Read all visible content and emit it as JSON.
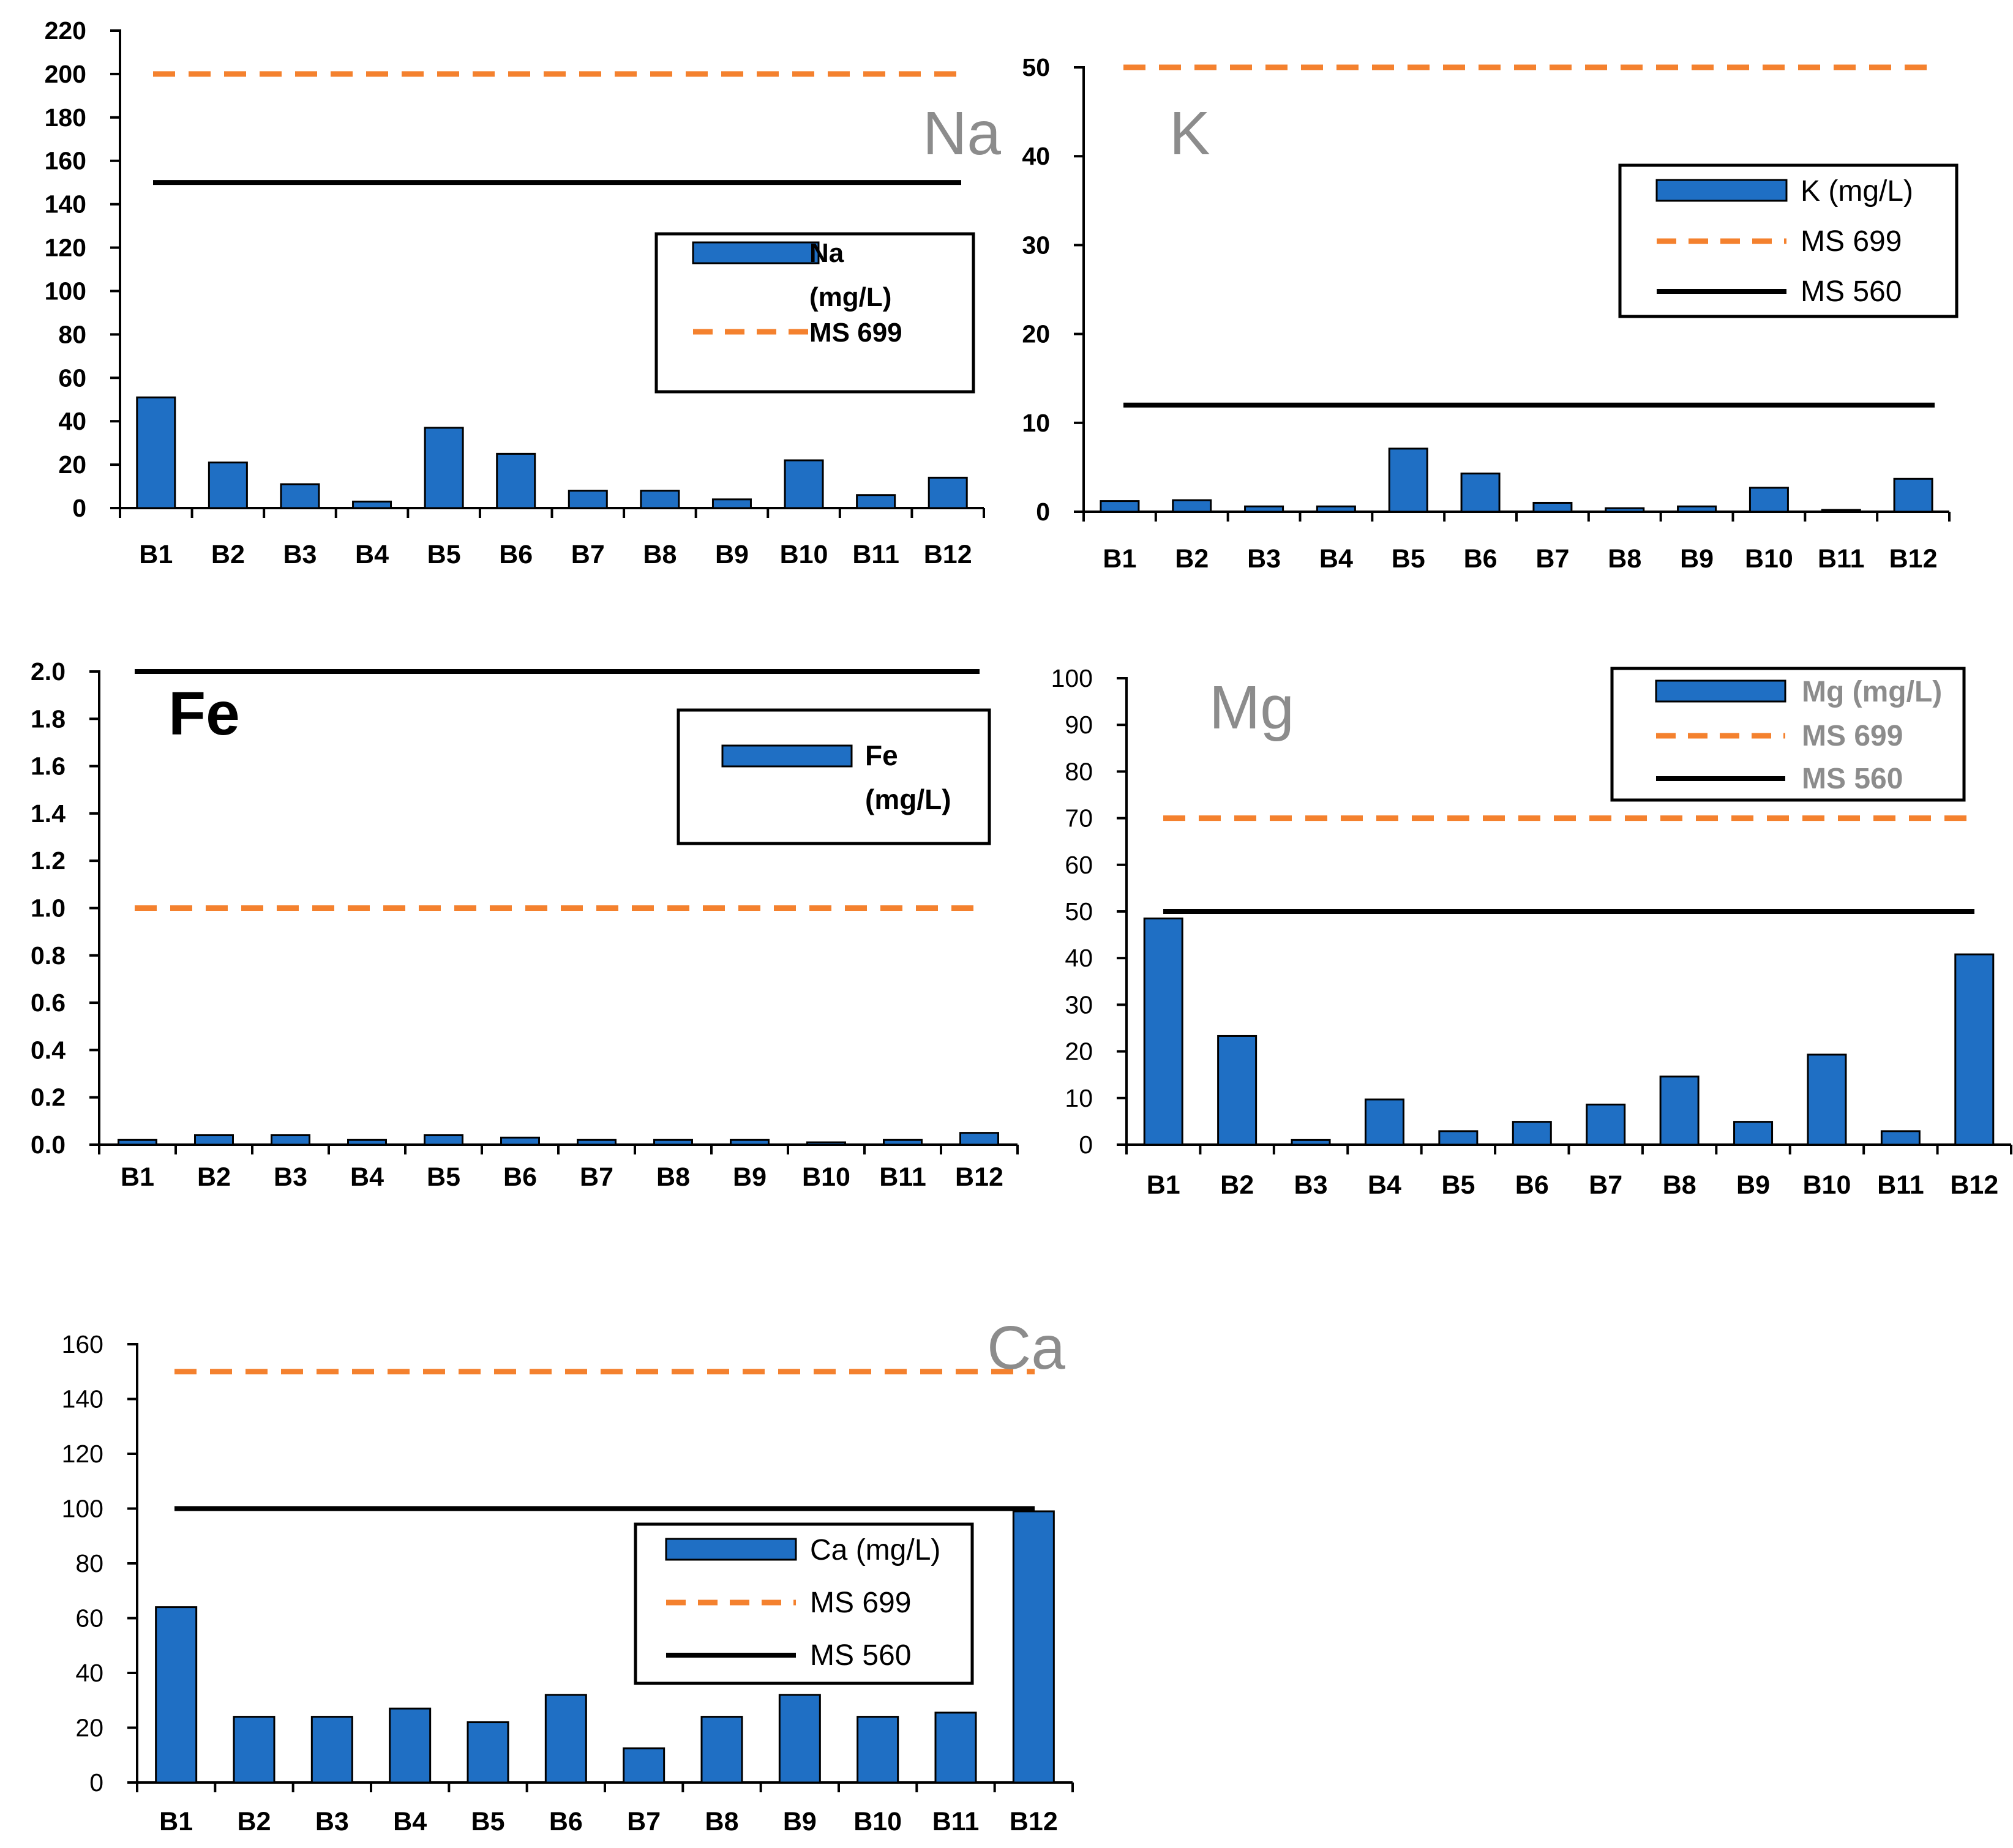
{
  "colors": {
    "bar_fill": "#1f6fc4",
    "bar_stroke": "#000000",
    "ms699": "#f4812e",
    "ms560": "#000000",
    "title_gray": "#8c8c8c",
    "axis": "#000000"
  },
  "chart_data": [
    {
      "id": "na",
      "type": "bar",
      "title": "Na",
      "categories": [
        "B1",
        "B2",
        "B3",
        "B4",
        "B5",
        "B6",
        "B7",
        "B8",
        "B9",
        "B10",
        "B11",
        "B12"
      ],
      "series": [
        {
          "name": "Na (mg/L)",
          "values": [
            51,
            21,
            11,
            3,
            37,
            25,
            8,
            8,
            4,
            22,
            6,
            14
          ]
        }
      ],
      "reference_lines": [
        {
          "name": "MS 699",
          "value": 200,
          "style": "dashed"
        },
        {
          "name": "MS 560",
          "value": 150,
          "style": "solid"
        }
      ],
      "yticks": [
        "0",
        "20",
        "40",
        "60",
        "80",
        "100",
        "120",
        "140",
        "160",
        "180",
        "200",
        "220"
      ],
      "ylim": [
        0,
        220
      ],
      "legend": {
        "items": [
          {
            "kind": "bar",
            "lines": [
              "Na",
              "(mg/L)"
            ]
          },
          {
            "kind": "dashed",
            "lines": [
              "MS 699"
            ]
          }
        ]
      }
    },
    {
      "id": "k",
      "type": "bar",
      "title": "K",
      "categories": [
        "B1",
        "B2",
        "B3",
        "B4",
        "B5",
        "B6",
        "B7",
        "B8",
        "B9",
        "B10",
        "B11",
        "B12"
      ],
      "series": [
        {
          "name": "K (mg/L)",
          "values": [
            1.2,
            1.3,
            0.6,
            0.6,
            7.1,
            4.3,
            1.0,
            0.4,
            0.6,
            2.7,
            0.2,
            3.7
          ]
        }
      ],
      "reference_lines": [
        {
          "name": "MS 699",
          "value": 50,
          "style": "dashed"
        },
        {
          "name": "MS 560",
          "value": 12,
          "style": "solid"
        }
      ],
      "yticks": [
        "0",
        "10",
        "20",
        "30",
        "40",
        "50"
      ],
      "ylim": [
        0,
        50
      ],
      "legend": {
        "items": [
          {
            "kind": "bar",
            "lines": [
              "K (mg/L)"
            ]
          },
          {
            "kind": "dashed",
            "lines": [
              "MS 699"
            ]
          },
          {
            "kind": "solid",
            "lines": [
              "MS 560"
            ]
          }
        ]
      }
    },
    {
      "id": "fe",
      "type": "bar",
      "title": "Fe",
      "categories": [
        "B1",
        "B2",
        "B3",
        "B4",
        "B5",
        "B6",
        "B7",
        "B8",
        "B9",
        "B10",
        "B11",
        "B12"
      ],
      "series": [
        {
          "name": "Fe (mg/L)",
          "values": [
            0.02,
            0.04,
            0.04,
            0.02,
            0.04,
            0.03,
            0.02,
            0.02,
            0.02,
            0.01,
            0.02,
            0.05
          ]
        }
      ],
      "reference_lines": [
        {
          "name": "MS 699",
          "value": 1.0,
          "style": "dashed"
        },
        {
          "name": "MS 560",
          "value": 2.0,
          "style": "solid"
        }
      ],
      "yticks": [
        "0.0",
        "0.2",
        "0.4",
        "0.6",
        "0.8",
        "1.0",
        "1.2",
        "1.4",
        "1.6",
        "1.8",
        "2.0"
      ],
      "ylim": [
        0,
        2.0
      ],
      "legend": {
        "items": [
          {
            "kind": "bar",
            "lines": [
              "Fe",
              "(mg/L)"
            ]
          }
        ]
      }
    },
    {
      "id": "mg",
      "type": "bar",
      "title": "Mg",
      "categories": [
        "B1",
        "B2",
        "B3",
        "B4",
        "B5",
        "B6",
        "B7",
        "B8",
        "B9",
        "B10",
        "B11",
        "B12"
      ],
      "series": [
        {
          "name": "Mg (mg/L)",
          "values": [
            48.5,
            23.3,
            1,
            9.7,
            2.9,
            4.9,
            8.6,
            14.6,
            4.9,
            19.3,
            2.9,
            40.8
          ]
        }
      ],
      "reference_lines": [
        {
          "name": "MS 699",
          "value": 70,
          "style": "dashed"
        },
        {
          "name": "MS 560",
          "value": 50,
          "style": "solid"
        }
      ],
      "yticks": [
        "0",
        "10",
        "20",
        "30",
        "40",
        "50",
        "60",
        "70",
        "80",
        "90",
        "100"
      ],
      "ylim": [
        0,
        100
      ],
      "legend": {
        "items": [
          {
            "kind": "bar",
            "lines": [
              "Mg (mg/L)"
            ]
          },
          {
            "kind": "dashed",
            "lines": [
              "MS 699"
            ]
          },
          {
            "kind": "solid",
            "lines": [
              "MS 560"
            ]
          }
        ]
      }
    },
    {
      "id": "ca",
      "type": "bar",
      "title": "Ca",
      "categories": [
        "B1",
        "B2",
        "B3",
        "B4",
        "B5",
        "B6",
        "B7",
        "B8",
        "B9",
        "B10",
        "B11",
        "B12"
      ],
      "series": [
        {
          "name": "Ca (mg/L)",
          "values": [
            64,
            24,
            24,
            27,
            22,
            32,
            12.5,
            24,
            32,
            24,
            25.5,
            99
          ]
        }
      ],
      "reference_lines": [
        {
          "name": "MS 699",
          "value": 150,
          "style": "dashed"
        },
        {
          "name": "MS 560",
          "value": 100,
          "style": "solid"
        }
      ],
      "yticks": [
        "0",
        "20",
        "40",
        "60",
        "80",
        "100",
        "120",
        "140",
        "160"
      ],
      "ylim": [
        0,
        160
      ],
      "legend": {
        "items": [
          {
            "kind": "bar",
            "lines": [
              "Ca (mg/L)"
            ]
          },
          {
            "kind": "dashed",
            "lines": [
              "MS 699"
            ]
          },
          {
            "kind": "solid",
            "lines": [
              "MS 560"
            ]
          }
        ]
      }
    }
  ]
}
